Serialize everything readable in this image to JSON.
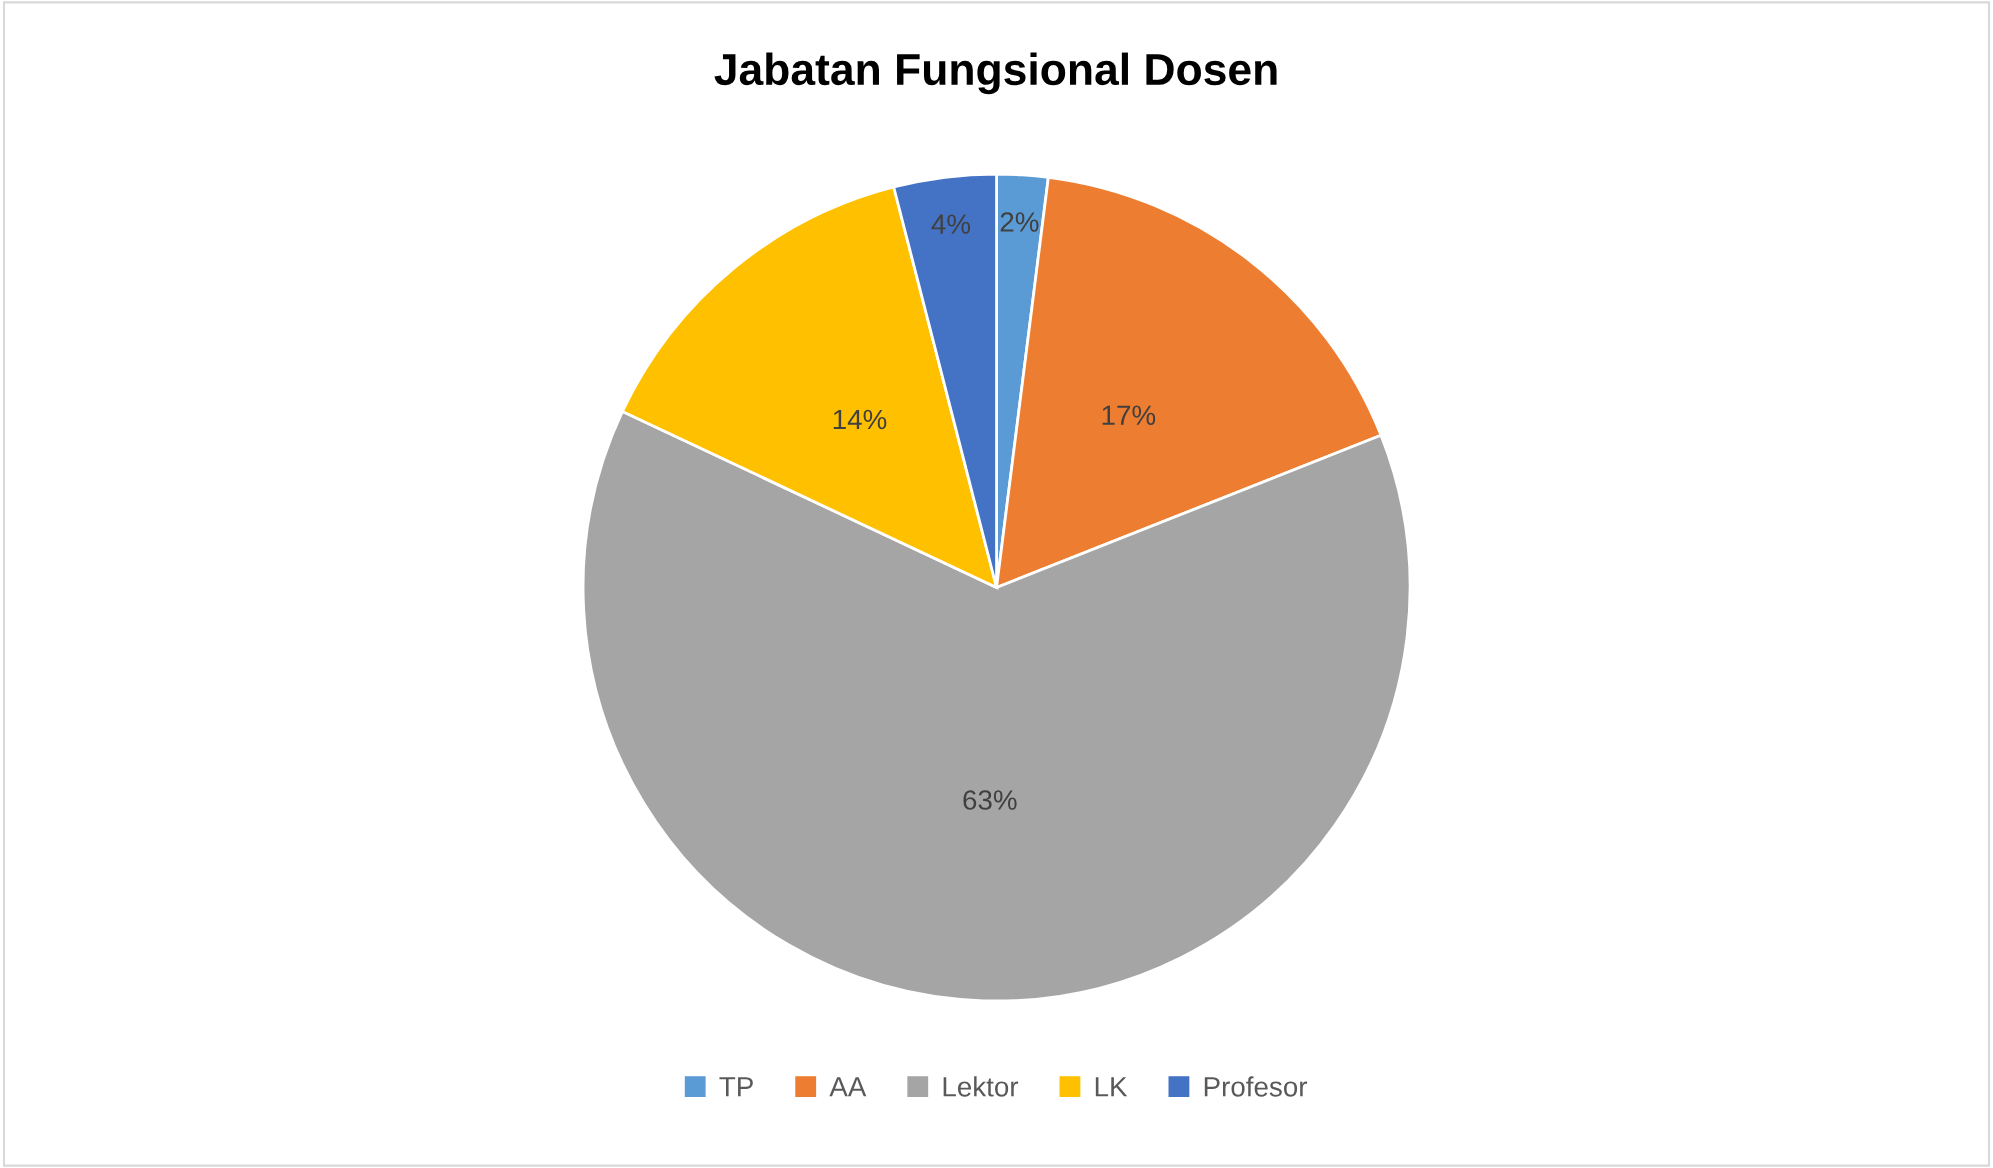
{
  "chart_data": {
    "type": "pie",
    "title": "Jabatan Fungsional Dosen",
    "categories": [
      "TP",
      "AA",
      "Lektor",
      "LK",
      "Profesor"
    ],
    "values": [
      2,
      17,
      63,
      14,
      4
    ],
    "colors": [
      "#5b9bd5",
      "#ed7d31",
      "#a5a5a5",
      "#ffc000",
      "#4472c4"
    ],
    "value_labels": [
      "2%",
      "17%",
      "63%",
      "14%",
      "4%"
    ],
    "legend": "bottom"
  }
}
